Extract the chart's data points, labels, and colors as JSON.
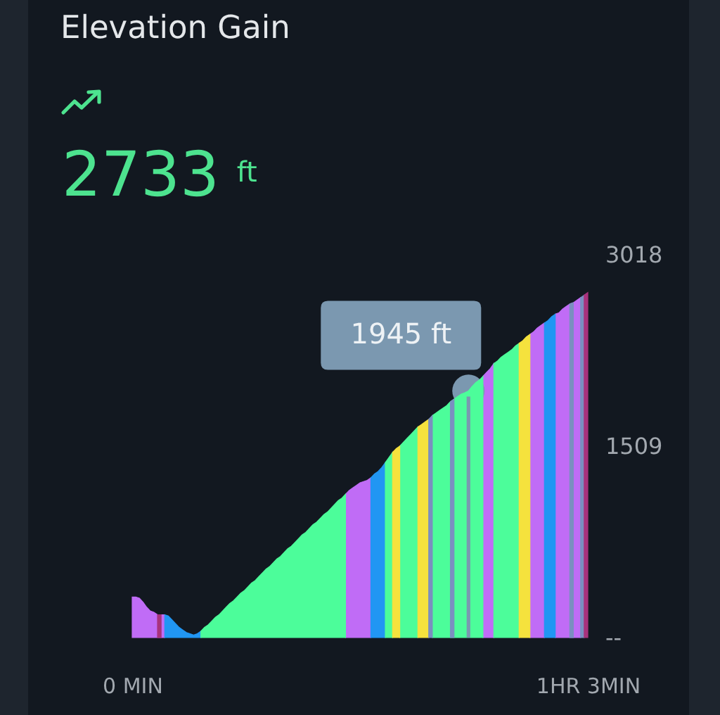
{
  "chart_data": {
    "type": "area",
    "title": "Elevation Gain",
    "subtitle": "2733 ft",
    "categories": [
      "0 MIN",
      null,
      null,
      null,
      null,
      null,
      null,
      null,
      null,
      null,
      null,
      null,
      null,
      null,
      null,
      null,
      null,
      null,
      null,
      null,
      null,
      null,
      null,
      null,
      null,
      null,
      null,
      null,
      null,
      null,
      null,
      null,
      null,
      null,
      null,
      null,
      null,
      null,
      null,
      null,
      null,
      null,
      null,
      null,
      null,
      null,
      null,
      null,
      null,
      null,
      null,
      null,
      null,
      null,
      null,
      null,
      null,
      null,
      null,
      null,
      null,
      null,
      null,
      null,
      null,
      null,
      null,
      null,
      null,
      null,
      null,
      null,
      null,
      null,
      null,
      null,
      null,
      null,
      null,
      null,
      null,
      null,
      null,
      null,
      null,
      null,
      null,
      null,
      null,
      null,
      null,
      null,
      null,
      null,
      null,
      null,
      null,
      null,
      null,
      null,
      null,
      null,
      null,
      null,
      null,
      null,
      null,
      null,
      null,
      null,
      null,
      null,
      null,
      null,
      null,
      null,
      null,
      null,
      null,
      null,
      null,
      null,
      null,
      null,
      null,
      null,
      "1HR 3MIN"
    ],
    "ylim": [
      0,
      3018
    ],
    "yticks": [
      {
        "value": 0,
        "label": "--"
      },
      1509,
      3018
    ],
    "series": [
      {
        "color": "#c06cf6",
        "values": [
          320,
          320,
          310,
          280,
          240,
          210,
          200,
          180,
          180,
          180,
          null,
          null,
          null,
          null,
          null,
          null,
          null,
          null,
          null,
          null,
          null,
          null,
          null,
          null,
          null,
          null,
          null,
          null,
          null,
          null,
          null,
          null,
          null,
          null,
          null,
          null,
          null,
          null,
          null,
          null,
          null,
          null,
          null,
          null,
          null,
          null,
          null,
          null,
          null,
          null,
          null,
          null,
          null,
          null,
          null,
          null,
          null,
          null,
          null,
          1130,
          1160,
          1180,
          1200,
          1220,
          1230,
          1240,
          1260,
          null,
          null,
          null,
          null,
          null,
          null,
          null,
          null,
          null,
          null,
          null,
          null,
          null,
          null,
          null,
          null,
          null,
          null,
          null,
          null,
          null,
          null,
          null,
          null,
          null,
          null,
          null,
          null,
          null,
          null,
          2060,
          2090,
          2120,
          2160,
          null,
          null,
          null,
          null,
          null,
          null,
          null,
          null,
          null,
          2390,
          2410,
          2440,
          2460,
          2480,
          null,
          null,
          2550,
          2560,
          2590,
          2610,
          2630,
          2640,
          2660,
          2680,
          null,
          null
        ]
      },
      {
        "color": "#2196f3",
        "values": [
          null,
          null,
          null,
          null,
          null,
          null,
          null,
          null,
          null,
          180,
          170,
          140,
          110,
          80,
          60,
          40,
          30,
          20,
          30,
          50,
          null,
          null,
          null,
          null,
          null,
          null,
          null,
          null,
          null,
          null,
          null,
          null,
          null,
          null,
          null,
          null,
          null,
          null,
          null,
          null,
          null,
          null,
          null,
          null,
          null,
          null,
          null,
          null,
          null,
          null,
          null,
          null,
          null,
          null,
          null,
          null,
          null,
          null,
          null,
          null,
          null,
          null,
          null,
          null,
          null,
          null,
          1260,
          1290,
          1310,
          1340,
          1380,
          null,
          null,
          null,
          null,
          null,
          null,
          null,
          null,
          null,
          null,
          null,
          null,
          null,
          null,
          null,
          null,
          null,
          null,
          null,
          null,
          null,
          null,
          null,
          null,
          null,
          null,
          null,
          null,
          null,
          null,
          null,
          null,
          null,
          null,
          null,
          null,
          null,
          null,
          null,
          null,
          null,
          null,
          null,
          2480,
          2500,
          2530,
          2550,
          null,
          null,
          null,
          null,
          null,
          null,
          null,
          null,
          null
        ]
      },
      {
        "color": "#4cfd9a",
        "values": [
          null,
          null,
          null,
          null,
          null,
          null,
          null,
          null,
          null,
          null,
          null,
          null,
          null,
          null,
          null,
          null,
          null,
          null,
          null,
          50,
          80,
          100,
          130,
          160,
          180,
          210,
          240,
          270,
          290,
          320,
          350,
          370,
          400,
          430,
          450,
          480,
          510,
          540,
          560,
          590,
          620,
          640,
          670,
          700,
          720,
          750,
          780,
          810,
          830,
          860,
          890,
          910,
          940,
          970,
          990,
          1020,
          1050,
          1080,
          1100,
          1130,
          null,
          null,
          null,
          null,
          null,
          null,
          null,
          null,
          null,
          null,
          1380,
          1420,
          1460,
          null,
          1510,
          1540,
          1570,
          1600,
          1630,
          1660,
          null,
          null,
          null,
          1750,
          1770,
          1790,
          1810,
          1830,
          1860,
          1880,
          1900,
          1920,
          1930,
          1945,
          1980,
          2010,
          2030,
          2060,
          null,
          null,
          2160,
          2180,
          2210,
          2230,
          2250,
          2270,
          2300,
          2320,
          null,
          null,
          null,
          null,
          null,
          null,
          null,
          null,
          null,
          null,
          null,
          null,
          null,
          null,
          null,
          null,
          null,
          null,
          null
        ],
        "value_labels": [
          null,
          null,
          null,
          null,
          null,
          null,
          null,
          null,
          null,
          null,
          null,
          null,
          null,
          null,
          null,
          null,
          null,
          null,
          null,
          null,
          null,
          null,
          null,
          null,
          null,
          null,
          null,
          null,
          null,
          null,
          null,
          null,
          null,
          null,
          null,
          null,
          null,
          null,
          null,
          null,
          null,
          null,
          null,
          null,
          null,
          null,
          null,
          null,
          null,
          null,
          null,
          null,
          null,
          null,
          null,
          null,
          null,
          null,
          null,
          null,
          null,
          null,
          null,
          null,
          null,
          null,
          null,
          null,
          null,
          null,
          null,
          null,
          null,
          null,
          null,
          null,
          null,
          null,
          null,
          null,
          null,
          null,
          null,
          null,
          null,
          null,
          null,
          null,
          null,
          null,
          null,
          null,
          null,
          "1945 ft",
          null,
          null,
          null,
          null,
          null,
          null,
          null,
          null,
          null,
          null,
          null,
          null,
          null,
          null,
          null,
          null,
          null,
          null,
          null,
          null,
          null,
          null,
          null,
          null,
          null,
          null,
          null,
          null,
          null,
          null,
          null,
          null,
          null
        ]
      },
      {
        "color": "#f5e23d",
        "values": [
          null,
          null,
          null,
          null,
          null,
          null,
          null,
          null,
          null,
          null,
          null,
          null,
          null,
          null,
          null,
          null,
          null,
          null,
          null,
          null,
          null,
          null,
          null,
          null,
          null,
          null,
          null,
          null,
          null,
          null,
          null,
          null,
          null,
          null,
          null,
          null,
          null,
          null,
          null,
          null,
          null,
          null,
          null,
          null,
          null,
          null,
          null,
          null,
          null,
          null,
          null,
          null,
          null,
          null,
          null,
          null,
          null,
          null,
          null,
          null,
          null,
          null,
          null,
          null,
          null,
          null,
          null,
          null,
          null,
          null,
          null,
          null,
          1460,
          1490,
          1510,
          null,
          null,
          null,
          null,
          1660,
          1680,
          1700,
          1720,
          null,
          null,
          null,
          null,
          null,
          null,
          null,
          null,
          null,
          null,
          null,
          null,
          null,
          null,
          null,
          null,
          null,
          null,
          null,
          null,
          null,
          null,
          null,
          null,
          2320,
          2340,
          2370,
          2390,
          null,
          null,
          null,
          null,
          null,
          null,
          null,
          null,
          null,
          null,
          null,
          null,
          null,
          null,
          null,
          null
        ]
      },
      {
        "color": "#7b8fc0",
        "values": [
          null,
          null,
          null,
          null,
          null,
          null,
          null,
          null,
          null,
          null,
          null,
          null,
          null,
          null,
          null,
          null,
          null,
          null,
          null,
          null,
          null,
          null,
          null,
          null,
          null,
          null,
          null,
          null,
          null,
          null,
          null,
          null,
          null,
          null,
          null,
          null,
          null,
          null,
          null,
          null,
          null,
          null,
          null,
          null,
          null,
          null,
          null,
          null,
          null,
          null,
          null,
          null,
          null,
          null,
          null,
          null,
          null,
          null,
          null,
          null,
          null,
          null,
          null,
          null,
          null,
          null,
          null,
          null,
          null,
          null,
          null,
          null,
          null,
          null,
          null,
          null,
          null,
          null,
          null,
          null,
          null,
          null,
          1720,
          1750,
          null,
          null,
          null,
          null,
          1860,
          1880,
          null,
          null,
          null,
          null,
          null,
          null,
          null,
          null,
          null,
          null,
          null,
          null,
          null,
          null,
          null,
          null,
          null,
          null,
          null,
          null,
          null,
          null,
          null,
          null,
          null,
          null,
          null,
          null,
          null,
          null,
          null,
          2630,
          2640,
          null,
          2680,
          2700,
          null
        ]
      },
      {
        "color": "#a8327c",
        "values": [
          null,
          null,
          null,
          null,
          null,
          null,
          null,
          180,
          180,
          null,
          null,
          null,
          null,
          null,
          null,
          null,
          null,
          null,
          null,
          null,
          null,
          null,
          null,
          null,
          null,
          null,
          null,
          null,
          null,
          null,
          null,
          null,
          null,
          null,
          null,
          null,
          null,
          null,
          null,
          null,
          null,
          null,
          null,
          null,
          null,
          null,
          null,
          null,
          null,
          null,
          null,
          null,
          null,
          null,
          null,
          null,
          null,
          null,
          null,
          null,
          null,
          null,
          null,
          null,
          null,
          null,
          null,
          null,
          null,
          null,
          null,
          null,
          null,
          null,
          null,
          null,
          null,
          null,
          null,
          null,
          null,
          null,
          null,
          null,
          null,
          null,
          null,
          null,
          null,
          null,
          null,
          null,
          null,
          null,
          null,
          null,
          null,
          null,
          null,
          null,
          null,
          null,
          null,
          null,
          null,
          null,
          null,
          null,
          null,
          null,
          null,
          null,
          null,
          null,
          null,
          null,
          null,
          null,
          null,
          null,
          null,
          null,
          null,
          null,
          null,
          2700,
          2720
        ]
      }
    ]
  }
}
